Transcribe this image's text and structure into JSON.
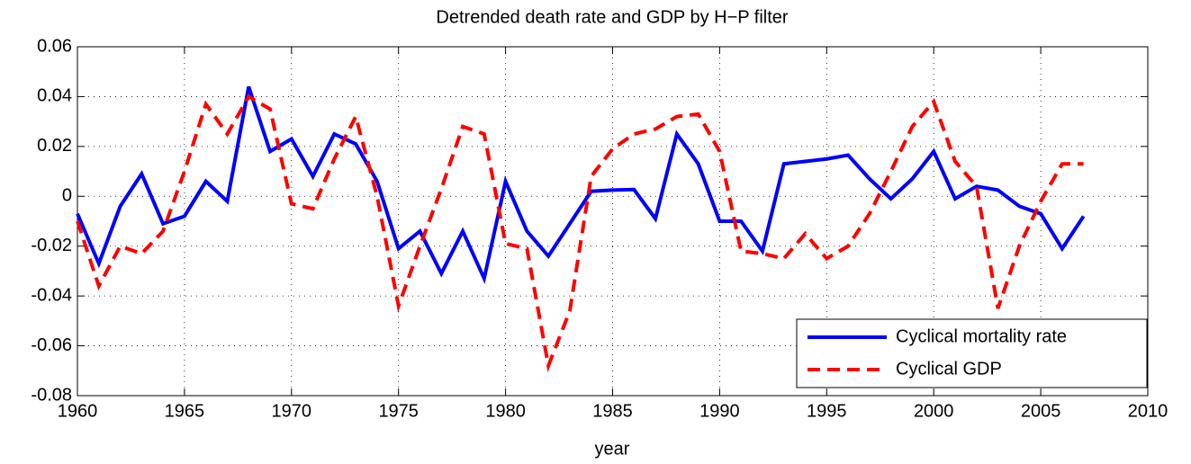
{
  "chart_data": {
    "type": "line",
    "title": "Detrended death rate and GDP by H−P filter",
    "xlabel": "year",
    "x": [
      1960,
      1961,
      1962,
      1963,
      1964,
      1965,
      1966,
      1967,
      1968,
      1969,
      1970,
      1971,
      1972,
      1973,
      1974,
      1975,
      1976,
      1977,
      1978,
      1979,
      1980,
      1981,
      1982,
      1983,
      1984,
      1985,
      1986,
      1987,
      1988,
      1989,
      1990,
      1991,
      1992,
      1993,
      1994,
      1995,
      1996,
      1997,
      1998,
      1999,
      2000,
      2001,
      2002,
      2003,
      2004,
      2005,
      2006,
      2007
    ],
    "series": [
      {
        "name": "Cyclical mortality rate",
        "color": "#0000ff",
        "dash": false,
        "values": [
          -0.007,
          -0.027,
          -0.004,
          0.009,
          -0.011,
          -0.008,
          0.006,
          -0.002,
          0.044,
          0.018,
          0.023,
          0.008,
          0.025,
          0.021,
          0.006,
          -0.021,
          -0.014,
          -0.031,
          -0.014,
          -0.033,
          0.006,
          -0.014,
          -0.024,
          -0.011,
          0.002,
          0.0025,
          0.0027,
          -0.009,
          0.025,
          0.013,
          -0.01,
          -0.01,
          -0.022,
          0.013,
          0.014,
          0.015,
          0.0165,
          0.007,
          -0.001,
          0.007,
          0.018,
          -0.001,
          0.004,
          0.0025,
          -0.004,
          -0.007,
          -0.021,
          -0.008
        ]
      },
      {
        "name": "Cyclical GDP",
        "color": "#ff0000",
        "dash": true,
        "values": [
          -0.01,
          -0.036,
          -0.02,
          -0.023,
          -0.014,
          0.01,
          0.037,
          0.025,
          0.04,
          0.035,
          -0.003,
          -0.005,
          0.015,
          0.032,
          0.0,
          -0.044,
          -0.02,
          0.003,
          0.028,
          0.025,
          -0.019,
          -0.021,
          -0.068,
          -0.046,
          0.008,
          0.019,
          0.025,
          0.027,
          0.032,
          0.033,
          0.018,
          -0.022,
          -0.023,
          -0.025,
          -0.015,
          -0.025,
          -0.02,
          -0.007,
          0.01,
          0.028,
          0.038,
          0.014,
          0.004,
          -0.045,
          -0.02,
          -0.002,
          0.013,
          0.013
        ]
      }
    ],
    "xlim": [
      1960,
      2010
    ],
    "xticks": [
      1960,
      1965,
      1970,
      1975,
      1980,
      1985,
      1990,
      1995,
      2000,
      2005,
      2010
    ],
    "ylim": [
      -0.08,
      0.06
    ],
    "yticks": [
      -0.08,
      -0.06,
      -0.04,
      -0.02,
      0,
      0.02,
      0.04,
      0.06
    ],
    "grid": true,
    "legend": "lower right"
  }
}
